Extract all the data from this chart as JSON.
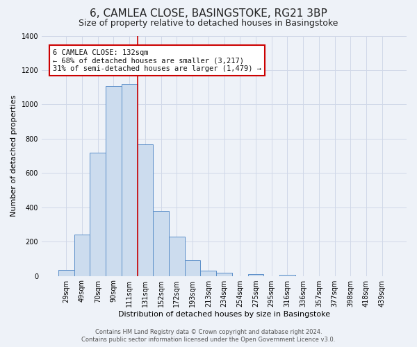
{
  "title": "6, CAMLEA CLOSE, BASINGSTOKE, RG21 3BP",
  "subtitle": "Size of property relative to detached houses in Basingstoke",
  "xlabel": "Distribution of detached houses by size in Basingstoke",
  "ylabel": "Number of detached properties",
  "footnote1": "Contains HM Land Registry data © Crown copyright and database right 2024.",
  "footnote2": "Contains public sector information licensed under the Open Government Licence v3.0.",
  "bar_labels": [
    "29sqm",
    "49sqm",
    "70sqm",
    "90sqm",
    "111sqm",
    "131sqm",
    "152sqm",
    "172sqm",
    "193sqm",
    "213sqm",
    "234sqm",
    "254sqm",
    "275sqm",
    "295sqm",
    "316sqm",
    "336sqm",
    "357sqm",
    "377sqm",
    "398sqm",
    "418sqm",
    "439sqm"
  ],
  "bar_values": [
    35,
    240,
    720,
    1105,
    1120,
    765,
    380,
    228,
    90,
    32,
    18,
    0,
    12,
    0,
    8,
    0,
    0,
    0,
    0,
    0,
    0
  ],
  "bar_color": "#ccdcee",
  "bar_edge_color": "#5b8fc9",
  "annotation_lines": [
    "6 CAMLEA CLOSE: 132sqm",
    "← 68% of detached houses are smaller (3,217)",
    "31% of semi-detached houses are larger (1,479) →"
  ],
  "annotation_box_color": "#ffffff",
  "annotation_box_edge": "#cc0000",
  "vline_color": "#cc0000",
  "vline_x_index": 5,
  "ylim": [
    0,
    1400
  ],
  "yticks": [
    0,
    200,
    400,
    600,
    800,
    1000,
    1200,
    1400
  ],
  "background_color": "#eef2f8",
  "grid_color": "#d0d8e8",
  "title_fontsize": 11,
  "subtitle_fontsize": 9,
  "axis_label_fontsize": 8,
  "tick_fontsize": 7,
  "annotation_fontsize": 7.5,
  "footnote_fontsize": 6
}
